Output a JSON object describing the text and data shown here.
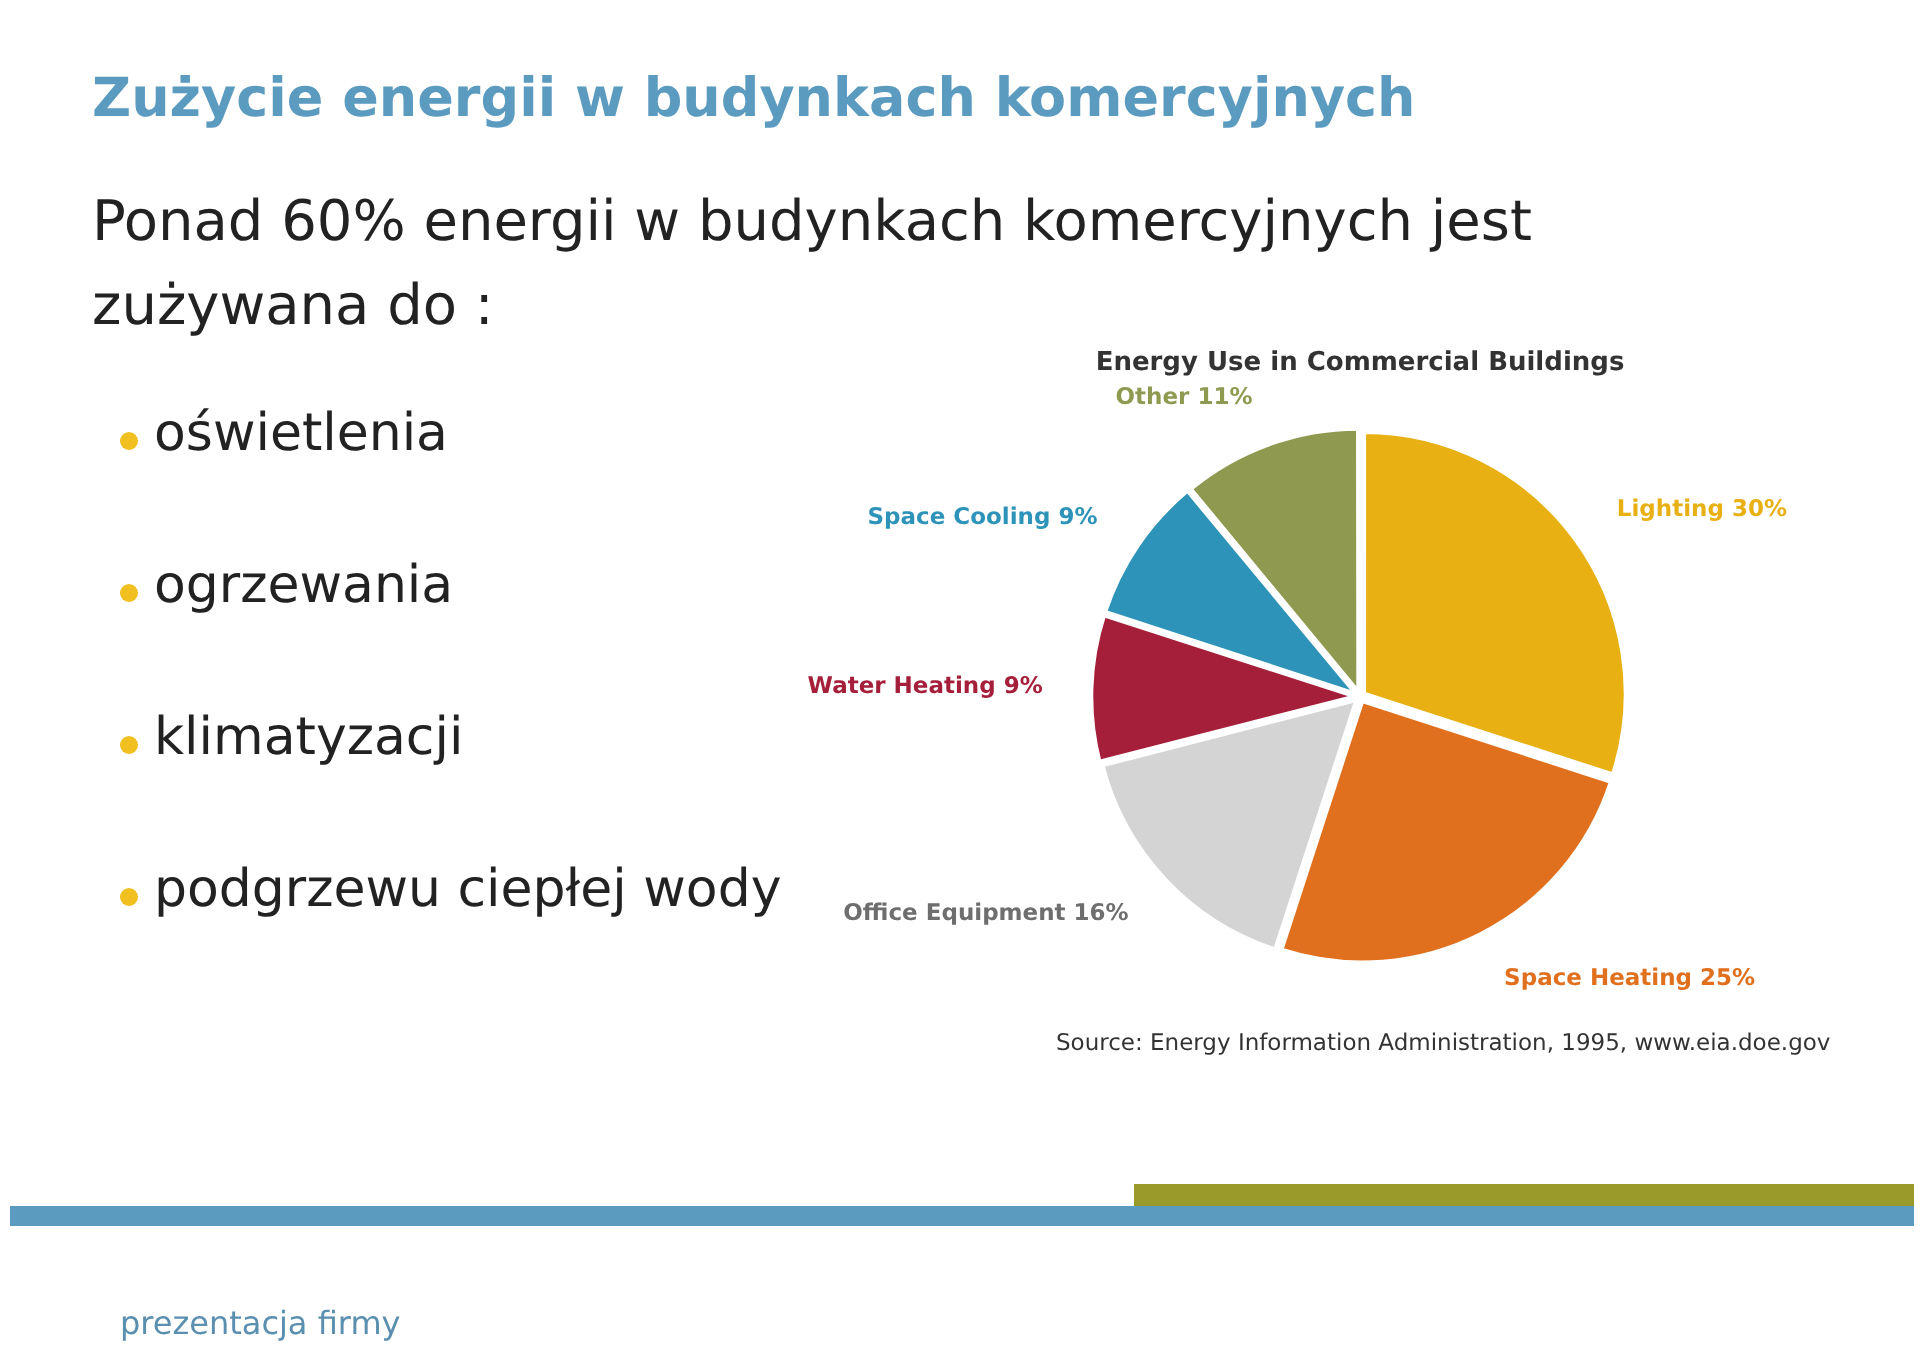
{
  "chart_data": {
    "type": "pie",
    "title": "Zużycie energii w budynkach komercyjnych",
    "subtitle": "Energy Use in Commercial Buildings",
    "categories": [
      "Lighting",
      "Space Heating",
      "Office Equipment",
      "Water Heating",
      "Space Cooling",
      "Other"
    ],
    "values": [
      30,
      25,
      16,
      9,
      9,
      11
    ],
    "value_labels": [
      "30%",
      "25%",
      "16%",
      "9%",
      "9%",
      "11%"
    ],
    "colors": [
      "#e8b013",
      "#e0701e",
      "#d4d4d4",
      "#a51f3a",
      "#2e93b8",
      "#8f9a50"
    ],
    "legend": false,
    "annotations": [
      "Ponad 60% energii w budynkach komercyjnych jest zużywana do :",
      "oświetlenia",
      "ogrzewania",
      "klimatyzacji",
      "podgrzewu ciepłej wody",
      "Source: Energy Information Administration, 1995, www.eia.doe.gov",
      "prezentacja firmy"
    ]
  }
}
